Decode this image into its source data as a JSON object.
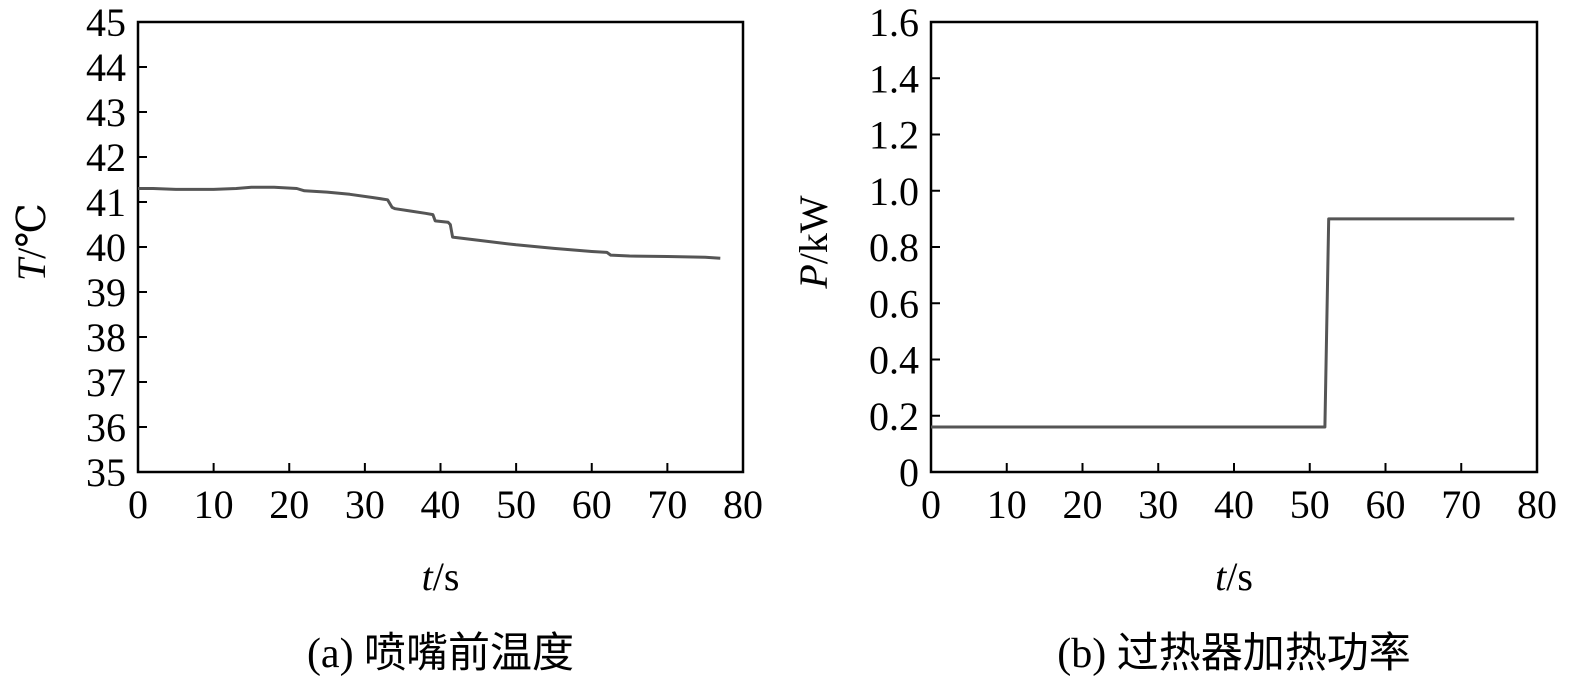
{
  "chart_data": [
    {
      "type": "line",
      "caption": "(a) 喷嘴前温度",
      "ylabel": {
        "var": "T",
        "unit": "/℃"
      },
      "xlabel": {
        "var": "t",
        "unit": "/s"
      },
      "xlim": [
        0,
        80
      ],
      "ylim": [
        35,
        45
      ],
      "xticks": [
        "0",
        "10",
        "20",
        "30",
        "40",
        "50",
        "60",
        "70",
        "80"
      ],
      "yticks": [
        "35",
        "36",
        "37",
        "38",
        "39",
        "40",
        "41",
        "42",
        "43",
        "44",
        "45"
      ],
      "grid": false,
      "series": [
        {
          "color": "#555555",
          "x": [
            0,
            2,
            5,
            10,
            13,
            15,
            18,
            21,
            22,
            25,
            28,
            31,
            33,
            33.6,
            34,
            36,
            38,
            39,
            39.3,
            41,
            41.3,
            41.6,
            45,
            50,
            55,
            60,
            62,
            62.5,
            65,
            70,
            75,
            77
          ],
          "y": [
            41.3,
            41.3,
            41.28,
            41.28,
            41.3,
            41.33,
            41.33,
            41.3,
            41.25,
            41.22,
            41.17,
            41.1,
            41.05,
            40.88,
            40.85,
            40.8,
            40.75,
            40.72,
            40.58,
            40.55,
            40.5,
            40.22,
            40.15,
            40.05,
            39.97,
            39.9,
            39.88,
            39.82,
            39.8,
            39.79,
            39.77,
            39.75
          ]
        }
      ]
    },
    {
      "type": "line",
      "caption": "(b) 过热器加热功率",
      "ylabel": {
        "var": "P",
        "unit": "/kW"
      },
      "xlabel": {
        "var": "t",
        "unit": "/s"
      },
      "xlim": [
        0,
        80
      ],
      "ylim": [
        0,
        1.6
      ],
      "xticks": [
        "0",
        "10",
        "20",
        "30",
        "40",
        "50",
        "60",
        "70",
        "80"
      ],
      "yticks": [
        "0",
        "0.2",
        "0.4",
        "0.6",
        "0.8",
        "1.0",
        "1.2",
        "1.4",
        "1.6"
      ],
      "grid": false,
      "series": [
        {
          "color": "#555555",
          "x": [
            0,
            52,
            52.5,
            77
          ],
          "y": [
            0.16,
            0.16,
            0.9,
            0.9
          ]
        }
      ]
    }
  ]
}
